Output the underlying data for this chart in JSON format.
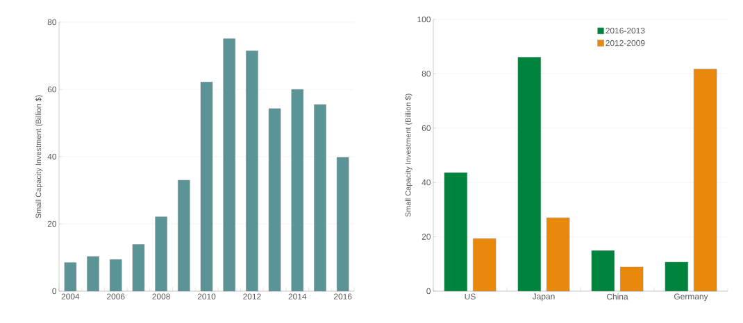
{
  "chart_data": [
    {
      "type": "bar",
      "ylabel": "Small Capacity Investment (Billion $)",
      "categories": [
        "2004",
        null,
        "2006",
        null,
        "2008",
        null,
        "2010",
        null,
        "2012",
        null,
        "2014",
        null,
        "2016"
      ],
      "values": [
        8.5,
        10.3,
        9.4,
        13.9,
        22.1,
        33.0,
        62.2,
        75.1,
        71.5,
        54.3,
        60.0,
        55.5,
        39.8
      ],
      "color": "#5a9497",
      "ylim": [
        0,
        80
      ],
      "yticks": [
        0,
        20,
        40,
        60,
        80
      ],
      "grid": "y"
    },
    {
      "type": "bar",
      "ylabel": "Small Capacity Investment (Billion $)",
      "categories": [
        "US",
        "Japan",
        "China",
        "Germany"
      ],
      "series": [
        {
          "name": "2016-2013",
          "color": "#00843d",
          "values": [
            43.6,
            86.1,
            14.9,
            10.7
          ]
        },
        {
          "name": "2012-2009",
          "color": "#e8890c",
          "values": [
            19.3,
            27.0,
            8.9,
            81.7
          ]
        }
      ],
      "ylim": [
        0,
        100
      ],
      "yticks": [
        0,
        20,
        40,
        60,
        80,
        100
      ],
      "grid": "y",
      "legend": "top"
    }
  ]
}
